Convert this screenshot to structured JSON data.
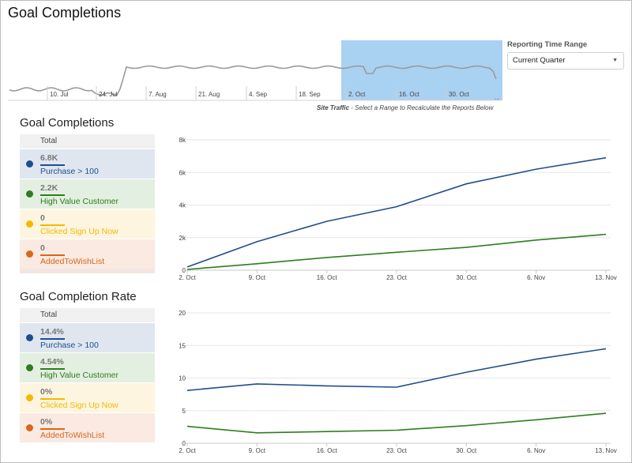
{
  "page_title": "Goal Completions",
  "overview": {
    "x_ticks": [
      "10. Jul",
      "24. Jul",
      "7. Aug",
      "21. Aug",
      "4. Sep",
      "18. Sep",
      "2. Oct",
      "16. Oct",
      "30. Oct"
    ],
    "ellipsis": "...",
    "caption_bold": "Site Traffic",
    "caption_rest": " - Select a Range to Recalculate the Reports Below",
    "selection_color": "#a9d1f2"
  },
  "reporting": {
    "label": "Reporting Time Range",
    "selected": "Current Quarter"
  },
  "section1": {
    "title": "Goal Completions",
    "total_label": "Total",
    "items": [
      {
        "value": "6.8K",
        "name": "Purchase > 100",
        "color": "#1f4e8c",
        "bg": "#dfe6f0"
      },
      {
        "value": "2.2K",
        "name": "High Value Customer",
        "color": "#2e7d1f",
        "bg": "#e3efe0"
      },
      {
        "value": "0",
        "name": "Clicked Sign Up Now",
        "color": "#f5b800",
        "bg": "#fdf5e0"
      },
      {
        "value": "0",
        "name": "AddedToWishList",
        "color": "#d9661a",
        "bg": "#faeae2"
      }
    ]
  },
  "section2": {
    "title": "Goal Completion Rate",
    "total_label": "Total",
    "items": [
      {
        "value": "14.4%",
        "name": "Purchase > 100",
        "color": "#1f4e8c",
        "bg": "#dfe6f0"
      },
      {
        "value": "4.54%",
        "name": "High Value Customer",
        "color": "#2e7d1f",
        "bg": "#e3efe0"
      },
      {
        "value": "0%",
        "name": "Clicked Sign Up Now",
        "color": "#f5b800",
        "bg": "#fdf5e0"
      },
      {
        "value": "0%",
        "name": "AddedToWishList",
        "color": "#d9661a",
        "bg": "#faeae2"
      }
    ]
  },
  "chart_data": [
    {
      "type": "line",
      "x": [
        "2. Oct",
        "9. Oct",
        "16. Oct",
        "23. Oct",
        "30. Oct",
        "6. Nov",
        "13. Nov"
      ],
      "x_ticks": [
        "2. Oct",
        "9. Oct",
        "16. Oct",
        "23. Oct",
        "30. Oct",
        "6. Nov",
        "13. Nov"
      ],
      "ylim": [
        0,
        8000
      ],
      "y_ticks": [
        0,
        2000,
        4000,
        6000,
        8000
      ],
      "y_tick_labels": [
        "0",
        "2k",
        "4k",
        "6k",
        "8k"
      ],
      "series": [
        {
          "name": "Purchase > 100",
          "color": "#1f4e8c",
          "values": [
            200,
            1750,
            3000,
            3900,
            5300,
            6200,
            6900
          ]
        },
        {
          "name": "High Value Customer",
          "color": "#2e7d1f",
          "values": [
            50,
            400,
            780,
            1100,
            1400,
            1850,
            2200
          ]
        }
      ]
    },
    {
      "type": "line",
      "x": [
        "2. Oct",
        "9. Oct",
        "16. Oct",
        "23. Oct",
        "30. Oct",
        "6. Nov",
        "13. Nov"
      ],
      "x_ticks": [
        "2. Oct",
        "9. Oct",
        "16. Oct",
        "23. Oct",
        "30. Oct",
        "6. Nov",
        "13. Nov"
      ],
      "ylim": [
        0,
        20
      ],
      "y_ticks": [
        0,
        5,
        10,
        15,
        20
      ],
      "y_tick_labels": [
        "0",
        "5",
        "10",
        "15",
        "20"
      ],
      "series": [
        {
          "name": "Purchase > 100",
          "color": "#1f4e8c",
          "values": [
            8.1,
            9.1,
            8.8,
            8.6,
            10.9,
            12.9,
            14.5
          ]
        },
        {
          "name": "High Value Customer",
          "color": "#2e7d1f",
          "values": [
            2.6,
            1.6,
            1.8,
            2.0,
            2.7,
            3.6,
            4.6
          ]
        }
      ]
    }
  ]
}
